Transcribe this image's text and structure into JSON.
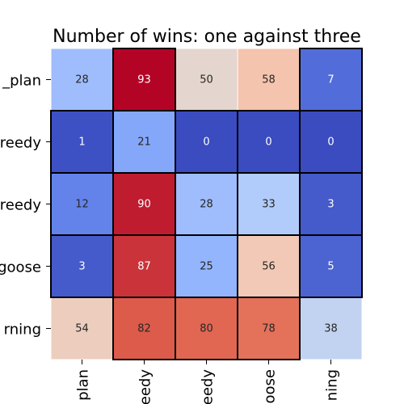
{
  "chart_data": {
    "type": "heatmap",
    "title": "Number of wins: one against three",
    "row_labels": [
      "_plan",
      "reedy",
      "reedy",
      "goose",
      "rning"
    ],
    "col_labels": [
      "plan",
      "eedy",
      "eedy",
      "oose",
      "ning"
    ],
    "values": [
      [
        28,
        93,
        50,
        58,
        7
      ],
      [
        1,
        21,
        0,
        0,
        0
      ],
      [
        12,
        90,
        28,
        33,
        3
      ],
      [
        3,
        87,
        25,
        56,
        5
      ],
      [
        54,
        82,
        80,
        78,
        38
      ]
    ],
    "vmin": 0,
    "vmax": 93,
    "colormap": "coolwarm",
    "highlight_border_color": "#000000",
    "grid_line_color": "#ffffff",
    "text_color_dark": "#262626",
    "text_color_light": "#ffffff"
  }
}
